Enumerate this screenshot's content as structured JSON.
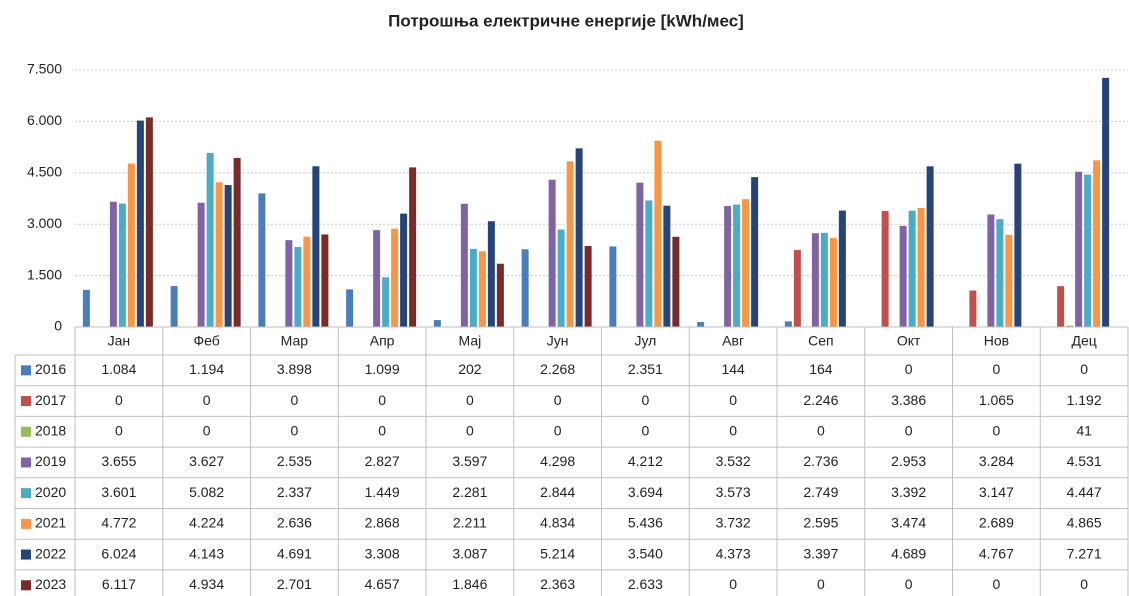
{
  "chart_data": {
    "type": "bar",
    "title": "Потрошња електричне енергије [kWh/мес]",
    "categories": [
      "Јан",
      "Феб",
      "Мар",
      "Апр",
      "Мај",
      "Јун",
      "Јул",
      "Авг",
      "Сеп",
      "Окт",
      "Нов",
      "Дец"
    ],
    "series": [
      {
        "name": "2016",
        "color": "#4a7ebb",
        "values": [
          1084,
          1194,
          3898,
          1099,
          202,
          2268,
          2351,
          144,
          164,
          0,
          0,
          0
        ],
        "value_labels": [
          "1.084",
          "1.194",
          "3.898",
          "1.099",
          "202",
          "2.268",
          "2.351",
          "144",
          "164",
          "0",
          "0",
          "0"
        ]
      },
      {
        "name": "2017",
        "color": "#c0504d",
        "values": [
          0,
          0,
          0,
          0,
          0,
          0,
          0,
          0,
          2246,
          3386,
          1065,
          1192
        ],
        "value_labels": [
          "0",
          "0",
          "0",
          "0",
          "0",
          "0",
          "0",
          "0",
          "2.246",
          "3.386",
          "1.065",
          "1.192"
        ]
      },
      {
        "name": "2018",
        "color": "#9bbb59",
        "values": [
          0,
          0,
          0,
          0,
          0,
          0,
          0,
          0,
          0,
          0,
          0,
          41
        ],
        "value_labels": [
          "0",
          "0",
          "0",
          "0",
          "0",
          "0",
          "0",
          "0",
          "0",
          "0",
          "0",
          "41"
        ]
      },
      {
        "name": "2019",
        "color": "#8064a2",
        "values": [
          3655,
          3627,
          2535,
          2827,
          3597,
          4298,
          4212,
          3532,
          2736,
          2953,
          3284,
          4531
        ],
        "value_labels": [
          "3.655",
          "3.627",
          "2.535",
          "2.827",
          "3.597",
          "4.298",
          "4.212",
          "3.532",
          "2.736",
          "2.953",
          "3.284",
          "4.531"
        ]
      },
      {
        "name": "2020",
        "color": "#4bacc6",
        "values": [
          3601,
          5082,
          2337,
          1449,
          2281,
          2844,
          3694,
          3573,
          2749,
          3392,
          3147,
          4447
        ],
        "value_labels": [
          "3.601",
          "5.082",
          "2.337",
          "1.449",
          "2.281",
          "2.844",
          "3.694",
          "3.573",
          "2.749",
          "3.392",
          "3.147",
          "4.447"
        ]
      },
      {
        "name": "2021",
        "color": "#f79646",
        "values": [
          4772,
          4224,
          2636,
          2868,
          2211,
          4834,
          5436,
          3732,
          2595,
          3474,
          2689,
          4865
        ],
        "value_labels": [
          "4.772",
          "4.224",
          "2.636",
          "2.868",
          "2.211",
          "4.834",
          "5.436",
          "3.732",
          "2.595",
          "3.474",
          "2.689",
          "4.865"
        ]
      },
      {
        "name": "2022",
        "color": "#264478",
        "values": [
          6024,
          4143,
          4691,
          3308,
          3087,
          5214,
          3540,
          4373,
          3397,
          4689,
          4767,
          7271
        ],
        "value_labels": [
          "6.024",
          "4.143",
          "4.691",
          "3.308",
          "3.087",
          "5.214",
          "3.540",
          "4.373",
          "3.397",
          "4.689",
          "4.767",
          "7.271"
        ]
      },
      {
        "name": "2023",
        "color": "#772c2a",
        "values": [
          6117,
          4934,
          2701,
          4657,
          1846,
          2363,
          2633,
          0,
          0,
          0,
          0,
          0
        ],
        "value_labels": [
          "6.117",
          "4.934",
          "2.701",
          "4.657",
          "1.846",
          "2.363",
          "2.633",
          "0",
          "0",
          "0",
          "0",
          "0"
        ]
      }
    ],
    "ylim": [
      0,
      7500
    ],
    "yticks": [
      0,
      {
        "value": 1500,
        "label": "1.500"
      },
      {
        "value": 3000,
        "label": "3.000"
      },
      {
        "value": 4500,
        "label": "4.500"
      },
      {
        "value": 6000,
        "label": "6.000"
      },
      {
        "value": 7500,
        "label": "7.500"
      }
    ],
    "grid": true
  }
}
